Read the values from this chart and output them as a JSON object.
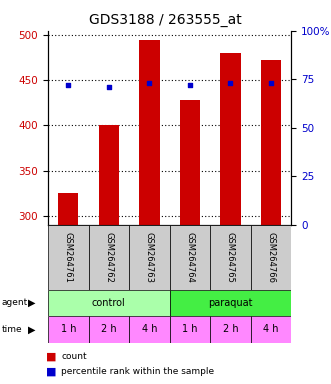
{
  "title": "GDS3188 / 263555_at",
  "samples": [
    "GSM264761",
    "GSM264762",
    "GSM264763",
    "GSM264764",
    "GSM264765",
    "GSM264766"
  ],
  "counts": [
    325,
    400,
    495,
    428,
    480,
    472
  ],
  "percentile_ranks": [
    72,
    71,
    73,
    72,
    73,
    73
  ],
  "ylim_left": [
    290,
    505
  ],
  "ylim_right": [
    0,
    100
  ],
  "y_ticks_left": [
    300,
    350,
    400,
    450,
    500
  ],
  "y_ticks_right": [
    0,
    25,
    50,
    75,
    100
  ],
  "bar_color": "#cc0000",
  "percentile_color": "#0000cc",
  "bar_bottom": 290,
  "agent_groups": [
    {
      "label": "control",
      "start": 0,
      "end": 3,
      "color": "#aaffaa"
    },
    {
      "label": "paraquat",
      "start": 3,
      "end": 6,
      "color": "#44ee44"
    }
  ],
  "time_labels": [
    "1 h",
    "2 h",
    "4 h",
    "1 h",
    "2 h",
    "4 h"
  ],
  "time_color": "#ff88ff",
  "sample_box_color": "#cccccc",
  "left_axis_color": "#cc0000",
  "right_axis_color": "#0000cc",
  "title_fontsize": 10,
  "tick_fontsize": 7.5,
  "bar_width": 0.5,
  "right_tick_labels": [
    "0",
    "25",
    "50",
    "75",
    "100%"
  ]
}
